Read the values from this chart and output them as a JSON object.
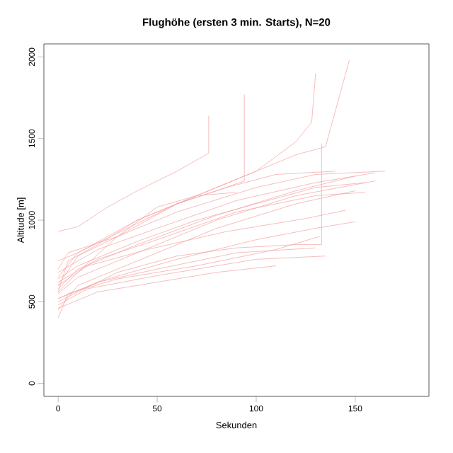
{
  "chart_data": {
    "type": "line",
    "title": "Flughöhe (ersten 3 min. Starts), N=20",
    "xlabel": "Sekunden",
    "ylabel": "Altitude [m]",
    "xlim": [
      -7.2,
      187.2
    ],
    "ylim": [
      -80,
      2080
    ],
    "xticks": [
      0,
      50,
      100,
      150
    ],
    "yticks": [
      0,
      500,
      1000,
      1500,
      2000
    ],
    "series": [
      {
        "color": "#f4a0a0",
        "x": [
          0,
          10,
          25,
          40,
          60,
          76,
          76
        ],
        "values": [
          930,
          960,
          1080,
          1180,
          1300,
          1410,
          1640
        ]
      },
      {
        "color": "#f4a0a0",
        "x": [
          0,
          5,
          20,
          40,
          60,
          80,
          94,
          94
        ],
        "values": [
          560,
          750,
          850,
          1000,
          1100,
          1180,
          1240,
          1770
        ]
      },
      {
        "color": "#f4a0a0",
        "x": [
          0,
          10,
          30,
          60,
          90,
          120,
          133,
          133
        ],
        "values": [
          500,
          560,
          680,
          780,
          830,
          850,
          850,
          1470
        ]
      },
      {
        "color": "#f4a0a0",
        "x": [
          0,
          10,
          30,
          60,
          90,
          120,
          135,
          147
        ],
        "values": [
          600,
          780,
          900,
          1100,
          1250,
          1400,
          1450,
          1980
        ]
      },
      {
        "color": "#f4a0a0",
        "x": [
          0,
          10,
          40,
          70,
          100,
          120,
          128,
          130
        ],
        "values": [
          650,
          800,
          1000,
          1150,
          1300,
          1480,
          1600,
          1900
        ]
      },
      {
        "color": "#f4a0a0",
        "x": [
          0,
          5,
          30,
          60,
          100,
          130,
          165
        ],
        "values": [
          700,
          800,
          900,
          1050,
          1200,
          1280,
          1300
        ]
      },
      {
        "color": "#f4a0a0",
        "x": [
          0,
          10,
          40,
          80,
          120,
          160
        ],
        "values": [
          550,
          650,
          800,
          1000,
          1150,
          1240
        ]
      },
      {
        "color": "#f4a0a0",
        "x": [
          0,
          10,
          40,
          80,
          120,
          150
        ],
        "values": [
          450,
          600,
          750,
          950,
          1100,
          1180
        ]
      },
      {
        "color": "#f4a0a0",
        "x": [
          0,
          20,
          50,
          90,
          130
        ],
        "values": [
          520,
          620,
          700,
          800,
          830
        ]
      },
      {
        "color": "#f4a0a0",
        "x": [
          0,
          15,
          50,
          100,
          135
        ],
        "values": [
          480,
          580,
          660,
          760,
          780
        ]
      },
      {
        "color": "#f4a0a0",
        "x": [
          0,
          20,
          50,
          90,
          130,
          155
        ],
        "values": [
          620,
          760,
          880,
          1050,
          1150,
          1170
        ]
      },
      {
        "color": "#f4a0a0",
        "x": [
          0,
          10,
          40,
          80,
          120,
          150
        ],
        "values": [
          580,
          700,
          850,
          1030,
          1180,
          1270
        ]
      },
      {
        "color": "#f4a0a0",
        "x": [
          0,
          5,
          30,
          70,
          110,
          132
        ],
        "values": [
          400,
          550,
          640,
          720,
          820,
          900
        ]
      },
      {
        "color": "#f4a0a0",
        "x": [
          0,
          15,
          45,
          85,
          125,
          145
        ],
        "values": [
          600,
          720,
          820,
          930,
          1010,
          1060
        ]
      },
      {
        "color": "#f4a0a0",
        "x": [
          0,
          10,
          35,
          60,
          85,
          110,
          140
        ],
        "values": [
          750,
          800,
          950,
          1100,
          1200,
          1280,
          1300
        ]
      },
      {
        "color": "#f4a0a0",
        "x": [
          0,
          20,
          50,
          90,
          130,
          160
        ],
        "values": [
          680,
          820,
          950,
          1120,
          1230,
          1290
        ]
      },
      {
        "color": "#f4a0a0",
        "x": [
          0,
          25,
          60,
          100,
          130,
          150
        ],
        "values": [
          520,
          640,
          760,
          880,
          950,
          990
        ]
      },
      {
        "color": "#f4a0a0",
        "x": [
          0,
          10,
          40,
          70,
          100,
          130,
          155
        ],
        "values": [
          640,
          720,
          870,
          1000,
          1100,
          1200,
          1230
        ]
      },
      {
        "color": "#f4a0a0",
        "x": [
          0,
          20,
          50,
          80,
          110
        ],
        "values": [
          460,
          560,
          620,
          680,
          720
        ]
      },
      {
        "color": "#f4a0a0",
        "x": [
          0,
          10,
          30,
          50,
          70,
          90
        ],
        "values": [
          560,
          680,
          900,
          1080,
          1150,
          1170
        ]
      }
    ]
  }
}
